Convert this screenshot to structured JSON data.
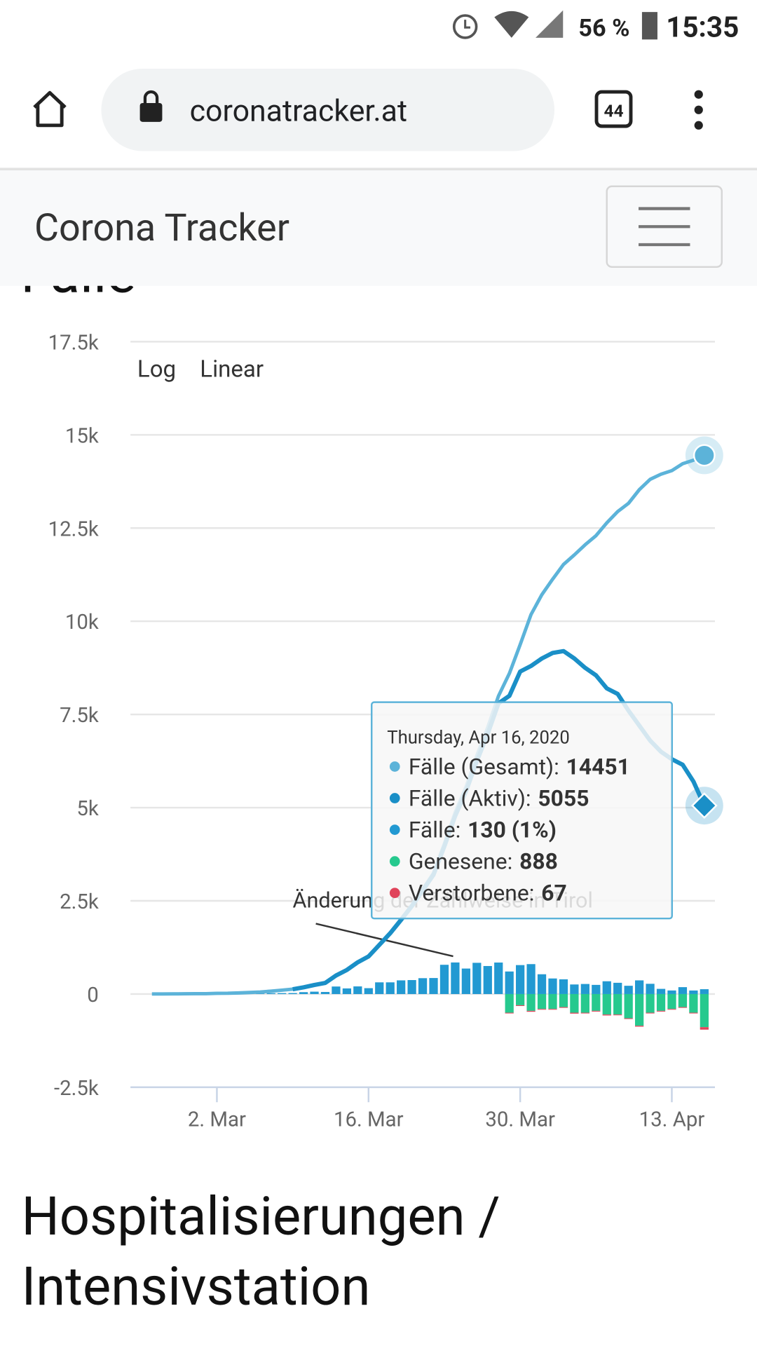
{
  "status_bar": {
    "battery": "56 %",
    "time": "15:35"
  },
  "browser": {
    "url": "coronatracker.at",
    "tabs": "44"
  },
  "app_header": {
    "title": "Corona Tracker"
  },
  "section_title": "Fälle",
  "chart_data": {
    "type": "bar-line",
    "buttons": [
      "Log",
      "Linear"
    ],
    "annotation": "Änderung der Zählweise in Tirol",
    "categories": [
      null,
      null,
      null,
      null,
      null,
      null,
      "2. Mar",
      null,
      null,
      null,
      null,
      null,
      null,
      null,
      null,
      null,
      null,
      null,
      null,
      null,
      "16. Mar",
      null,
      null,
      null,
      null,
      null,
      null,
      null,
      null,
      null,
      null,
      null,
      null,
      null,
      "30. Mar",
      null,
      null,
      null,
      null,
      null,
      null,
      null,
      null,
      null,
      null,
      null,
      null,
      null,
      "13. Apr",
      null,
      null,
      null
    ],
    "ylim": [
      -2500,
      17500
    ],
    "yticks": [
      {
        "value": -2500,
        "label": "-2.5k"
      },
      0,
      {
        "value": 2500,
        "label": "2.5k"
      },
      {
        "value": 5000,
        "label": "5k"
      },
      {
        "value": 7500,
        "label": "7.5k"
      },
      {
        "value": 10000,
        "label": "10k"
      },
      {
        "value": 12500,
        "label": "12.5k"
      },
      {
        "value": 15000,
        "label": "15k"
      },
      {
        "value": 17500,
        "label": "17.5k"
      }
    ],
    "grid": true,
    "series": [
      {
        "name": "Fälle (Gesamt)",
        "kind": "line",
        "color": "#5cb3d9",
        "values": [
          2,
          3,
          5,
          6,
          9,
          10,
          18,
          21,
          29,
          41,
          55,
          79,
          104,
          131,
          182,
          246,
          302,
          504,
          655,
          860,
          1018,
          1332,
          1646,
          2013,
          2388,
          2814,
          3244,
          4029,
          4876,
          5560,
          6398,
          7150,
          7995,
          8600,
          9377,
          10180,
          10711,
          11129,
          11524,
          11781,
          12051,
          12297,
          12640,
          12942,
          13164,
          13531,
          13806,
          13945,
          14041,
          14226,
          14321,
          14451
        ]
      },
      {
        "name": "Fälle (Aktiv)",
        "kind": "line",
        "color": "#1a8fc7",
        "values": [
          null,
          null,
          null,
          null,
          null,
          null,
          null,
          null,
          null,
          null,
          null,
          null,
          null,
          130,
          180,
          243,
          298,
          498,
          648,
          852,
          1008,
          1320,
          1630,
          1990,
          2360,
          2780,
          3200,
          3960,
          4780,
          5440,
          6250,
          6980,
          7800,
          8000,
          8650,
          8800,
          9000,
          9150,
          9200,
          9000,
          8750,
          8550,
          8200,
          8050,
          7600,
          7200,
          6800,
          6500,
          6300,
          6150,
          5700,
          5055
        ]
      },
      {
        "name": "Fälle",
        "kind": "bar",
        "color": "#2299d2",
        "values": [
          null,
          null,
          null,
          null,
          null,
          null,
          null,
          null,
          null,
          null,
          14,
          24,
          25,
          27,
          51,
          64,
          56,
          202,
          151,
          205,
          158,
          314,
          314,
          367,
          375,
          426,
          430,
          785,
          847,
          684,
          838,
          752,
          845,
          605,
          777,
          803,
          531,
          418,
          395,
          257,
          270,
          246,
          343,
          302,
          222,
          367,
          275,
          139,
          96,
          185,
          95,
          130
        ]
      },
      {
        "name": "Genesene",
        "kind": "bar",
        "color": "#26c98e",
        "values": [
          null,
          null,
          null,
          null,
          null,
          null,
          null,
          null,
          null,
          null,
          null,
          null,
          null,
          null,
          null,
          null,
          null,
          null,
          null,
          null,
          null,
          null,
          null,
          null,
          null,
          null,
          null,
          null,
          null,
          null,
          null,
          null,
          null,
          -500,
          -300,
          -450,
          -400,
          -400,
          -350,
          -500,
          -500,
          -450,
          -550,
          -550,
          -650,
          -850,
          -500,
          -450,
          -400,
          -350,
          -500,
          -888
        ]
      },
      {
        "name": "Verstorbene",
        "kind": "bar",
        "color": "#e0435a",
        "values": [
          null,
          null,
          null,
          null,
          null,
          null,
          null,
          null,
          null,
          null,
          null,
          null,
          null,
          null,
          null,
          null,
          null,
          null,
          null,
          null,
          null,
          null,
          null,
          null,
          null,
          null,
          null,
          null,
          null,
          null,
          null,
          null,
          null,
          -20,
          -20,
          -25,
          -20,
          -20,
          -20,
          -25,
          -20,
          -20,
          -25,
          -20,
          -20,
          -25,
          -20,
          -20,
          -20,
          -20,
          -20,
          -67
        ]
      }
    ],
    "tooltip": {
      "date": "Thursday, Apr 16, 2020",
      "items": [
        {
          "label": "Fälle (Gesamt):",
          "value": 14451,
          "color": "#5cb3d9"
        },
        {
          "label": "Fälle (Aktiv):",
          "value": 5055,
          "color": "#1a8fc7"
        },
        {
          "label": "Fälle:",
          "value": "130 (1%)",
          "color": "#2299d2"
        },
        {
          "label": "Genesene:",
          "value": 888,
          "color": "#26c98e"
        },
        {
          "label": "Verstorbene:",
          "value": 67,
          "color": "#e0435a"
        }
      ]
    }
  },
  "next_section_title": [
    "Hospitalisierungen /",
    "Intensivstation"
  ]
}
